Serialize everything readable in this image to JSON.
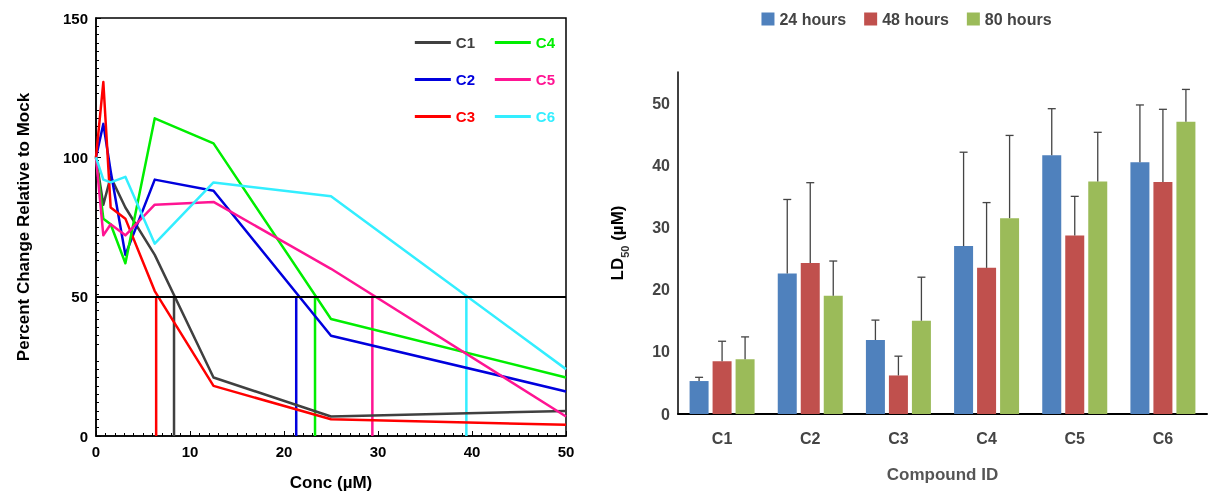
{
  "chart_data": [
    {
      "type": "line",
      "xlabel": "Conc (µM)",
      "ylabel": "Percent Change Relative to Mock",
      "x": [
        0,
        0.78,
        1.56,
        3.125,
        6.25,
        12.5,
        25,
        50
      ],
      "xlim": [
        0,
        50
      ],
      "xticks": [
        0,
        10,
        20,
        30,
        40,
        50
      ],
      "ylim": [
        0,
        150
      ],
      "yticks": [
        0,
        50,
        100,
        150
      ],
      "grid": false,
      "legend": "top right",
      "marker": "none",
      "line_style": "solid",
      "series": [
        {
          "name": "C1",
          "color": "#404040",
          "values": [
            100,
            83,
            93,
            82,
            65,
            21,
            7,
            9
          ]
        },
        {
          "name": "C2",
          "color": "#0000dd",
          "values": [
            100,
            112,
            95,
            65,
            92,
            88,
            36,
            16
          ]
        },
        {
          "name": "C3",
          "color": "#ff0000",
          "values": [
            100,
            127,
            82,
            78,
            52,
            18,
            6,
            4
          ]
        },
        {
          "name": "C4",
          "color": "#00ee00",
          "values": [
            100,
            78,
            76,
            62,
            114,
            105,
            42,
            21
          ]
        },
        {
          "name": "C5",
          "color": "#ff1493",
          "values": [
            100,
            72,
            76,
            72,
            83,
            84,
            60,
            7
          ]
        },
        {
          "name": "C6",
          "color": "#33eeff",
          "values": [
            100,
            92,
            91,
            93,
            69,
            91,
            86,
            24
          ]
        },
        {
          "color": "#404040",
          "x": [
            8.3,
            8.3
          ],
          "values": [
            0,
            50
          ]
        },
        {
          "color": "#0000dd",
          "x": [
            21.3,
            21.3
          ],
          "values": [
            0,
            50
          ]
        },
        {
          "color": "#ff0000",
          "x": [
            6.4,
            6.4
          ],
          "values": [
            0,
            50
          ]
        },
        {
          "color": "#00ee00",
          "x": [
            23.3,
            23.3
          ],
          "values": [
            0,
            50
          ]
        },
        {
          "color": "#ff1493",
          "x": [
            29.4,
            29.4
          ],
          "values": [
            0,
            50
          ]
        },
        {
          "color": "#33eeff",
          "x": [
            39.4,
            39.4
          ],
          "values": [
            0,
            50
          ]
        }
      ],
      "ref_lines": [
        {
          "axis": "y",
          "value": 50,
          "color": "#000000"
        }
      ]
    },
    {
      "type": "bar",
      "xlabel": "Compound ID",
      "ylabel": "LD$_{50}$ (µM)",
      "categories": [
        "C1",
        "C2",
        "C3",
        "C4",
        "C5",
        "C6"
      ],
      "ylim": [
        0,
        55
      ],
      "yticks": [
        0,
        10,
        20,
        30,
        40,
        50
      ],
      "grid": false,
      "legend": "top",
      "series": [
        {
          "name": "24 hours",
          "color": "#4f81bd",
          "values": [
            5.3,
            22.6,
            11.9,
            27.0,
            41.6,
            40.5
          ],
          "errors": [
            [
              5.3,
              5.9
            ],
            [
              22.6,
              34.5
            ],
            [
              11.9,
              15.1
            ],
            [
              27.0,
              42.1
            ],
            [
              41.6,
              49.1
            ],
            [
              40.5,
              49.7
            ]
          ]
        },
        {
          "name": "48 hours",
          "color": "#c0504d",
          "values": [
            8.5,
            24.3,
            6.2,
            23.5,
            28.7,
            37.3
          ],
          "errors": [
            [
              8.5,
              11.7
            ],
            [
              24.3,
              37.2
            ],
            [
              6.2,
              9.3
            ],
            [
              23.5,
              34.0
            ],
            [
              28.7,
              35.0
            ],
            [
              37.3,
              49.0
            ]
          ]
        },
        {
          "name": "80 hours",
          "color": "#9bbb59",
          "values": [
            8.8,
            19.0,
            15.0,
            31.5,
            37.4,
            47.0
          ],
          "errors": [
            [
              8.8,
              12.4
            ],
            [
              19.0,
              24.6
            ],
            [
              15.0,
              22.0
            ],
            [
              31.5,
              44.8
            ],
            [
              37.4,
              45.3
            ],
            [
              47.0,
              52.2
            ]
          ]
        }
      ]
    }
  ]
}
